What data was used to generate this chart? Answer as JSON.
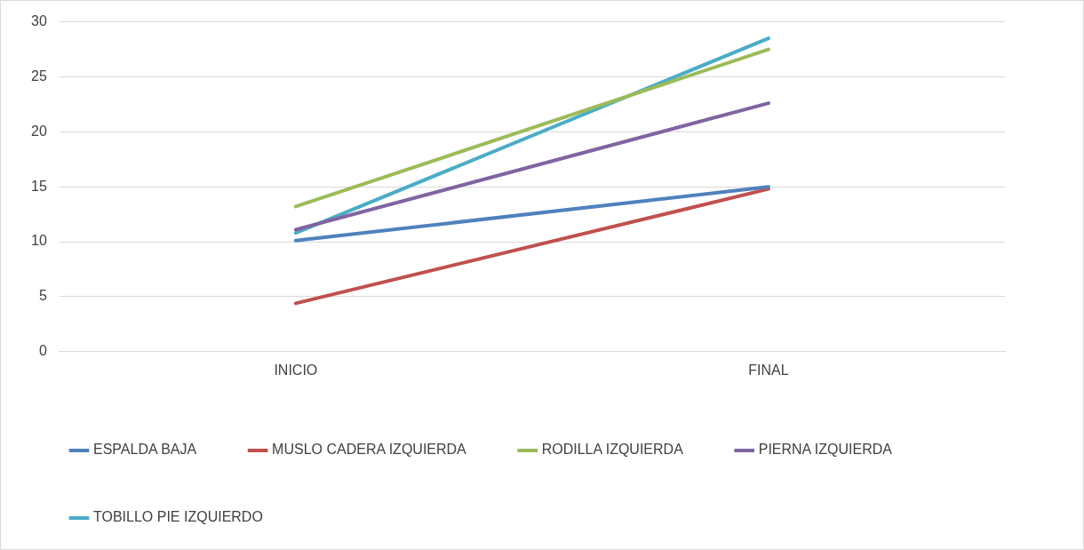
{
  "chart_data": {
    "type": "line",
    "categories": [
      "INICIO",
      "FINAL"
    ],
    "series": [
      {
        "name": "ESPALDA BAJA",
        "color": "#4f81bd",
        "values": [
          10.1,
          15.0
        ]
      },
      {
        "name": "MUSLO CADERA IZQUIERDA",
        "color": "#c0504d",
        "values": [
          4.4,
          14.8
        ]
      },
      {
        "name": "RODILLA IZQUIERDA",
        "color": "#9bbb59",
        "values": [
          13.2,
          27.5
        ]
      },
      {
        "name": "PIERNA IZQUIERDA",
        "color": "#8064a2",
        "values": [
          11.1,
          22.6
        ]
      },
      {
        "name": "TOBILLO PIE IZQUIERDO",
        "color": "#4bacc6",
        "values": [
          10.8,
          28.5
        ]
      }
    ],
    "ylim": [
      0,
      30
    ],
    "yticks": [
      0,
      5,
      10,
      15,
      20,
      25,
      30
    ],
    "grid": "y",
    "legend": "bottom",
    "marker": "none",
    "line_style": "solid"
  }
}
